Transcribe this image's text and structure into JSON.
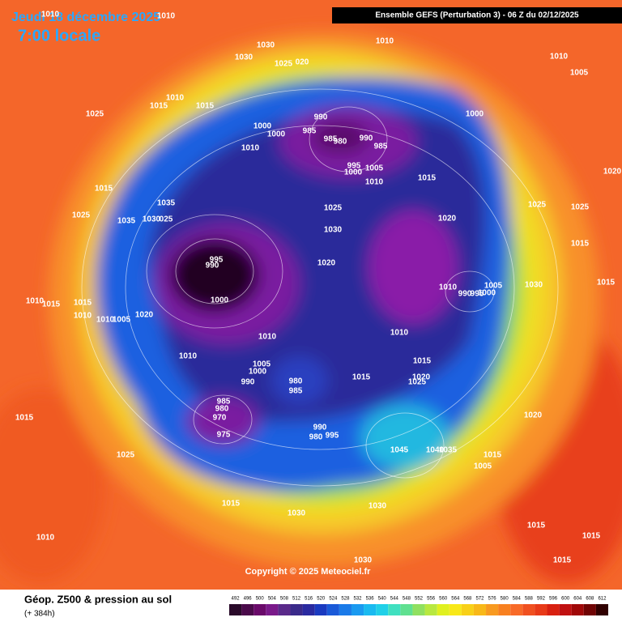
{
  "header": {
    "date": "Jeudi 18 décembre 2025",
    "time": "7:00 locale",
    "model": "Ensemble GEFS  (Perturbation 3)  -  06 Z du 02/12/2025"
  },
  "map": {
    "copyright": "Copyright © 2025 Meteociel.fr",
    "pressure_labels": [
      "1010",
      "1010",
      "1030",
      "1030",
      "1025",
      "020",
      "1010",
      "1010",
      "1005",
      "1025",
      "1015",
      "1010",
      "1015",
      "990",
      "1000",
      "985",
      "1000",
      "985",
      "980",
      "990",
      "985",
      "1000",
      "1010",
      "995",
      "1005",
      "1000",
      "1010",
      "1015",
      "1020",
      "1015",
      "1035",
      "1025",
      "1035",
      "1030",
      "025",
      "1025",
      "1030",
      "1020",
      "1025",
      "1025",
      "1015",
      "995",
      "990",
      "1020",
      "1030",
      "1005",
      "1015",
      "1010",
      "990",
      "995",
      "1000",
      "1000",
      "1010",
      "1015",
      "1015",
      "1010",
      "1010",
      "1005",
      "1020",
      "1010",
      "1010",
      "1010",
      "1015",
      "1005",
      "1000",
      "1015",
      "1020",
      "1025",
      "980",
      "990",
      "985",
      "985",
      "980",
      "970",
      "975",
      "990",
      "980",
      "995",
      "1015",
      "1020",
      "1045",
      "1040",
      "1035",
      "1015",
      "1005",
      "1025",
      "1015",
      "1030",
      "1030",
      "1015",
      "1015",
      "1010",
      "1030",
      "1015"
    ]
  },
  "legend": {
    "title": "Géop. Z500 & pression au sol",
    "subtitle": "(+ 384h)",
    "scale": {
      "values": [
        492,
        496,
        500,
        504,
        508,
        512,
        516,
        520,
        524,
        528,
        532,
        536,
        540,
        544,
        548,
        552,
        556,
        560,
        564,
        568,
        572,
        576,
        580,
        584,
        588,
        592,
        596,
        600,
        604,
        608,
        612
      ],
      "colors": [
        "#2a0a2a",
        "#4a0a4a",
        "#6a0a6a",
        "#7a1a8a",
        "#5a2a8a",
        "#3a2a8a",
        "#2a2aa0",
        "#1a3ac0",
        "#1a5ad8",
        "#1a7ae8",
        "#1a9af0",
        "#1abaf0",
        "#20d0e8",
        "#40e0c0",
        "#60e090",
        "#90e060",
        "#b8e840",
        "#e0f020",
        "#f8e818",
        "#f8d018",
        "#f8b818",
        "#f89a20",
        "#f88020",
        "#f86a28",
        "#f05020",
        "#e83a18",
        "#d82010",
        "#c01010",
        "#a00808",
        "#700404",
        "#300000"
      ]
    }
  }
}
